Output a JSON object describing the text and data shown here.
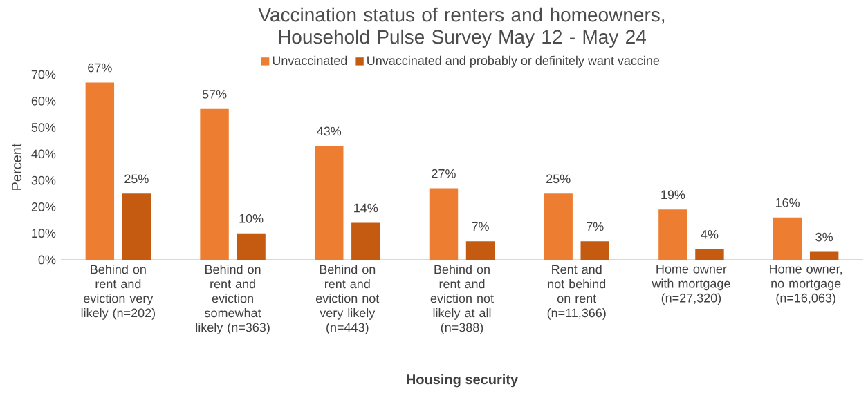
{
  "chart_data": {
    "type": "bar",
    "title": "Vaccination status of renters and homeowners, Household Pulse Survey May 12 - May 24",
    "xlabel": "Housing security",
    "ylabel": "Percent",
    "categories": [
      "Behind on rent and eviction very likely (n=202)",
      "Behind on rent and eviction somewhat likely (n=363)",
      "Behind on rent and eviction not very likely (n=443)",
      "Behind on rent and eviction  not likely at all (n=388)",
      "Rent and not behind on rent (n=11,366)",
      "Home owner with mortgage (n=27,320)",
      "Home owner, no mortgage (n=16,063)"
    ],
    "series": [
      {
        "name": "Unvaccinated",
        "color": "#ed7d31",
        "values": [
          67,
          57,
          43,
          27,
          25,
          19,
          16
        ],
        "value_labels": [
          "67%",
          "57%",
          "43%",
          "27%",
          "25%",
          "19%",
          "16%"
        ]
      },
      {
        "name": "Unvaccinated and probably or definitely want vaccine",
        "color": "#c55a11",
        "values": [
          25,
          10,
          14,
          7,
          7,
          4,
          3
        ],
        "value_labels": [
          "25%",
          "10%",
          "14%",
          "7%",
          "7%",
          "4%",
          "3%"
        ]
      }
    ],
    "ylim": [
      0,
      70
    ],
    "yticks": [
      {
        "value": 0,
        "label": "0%"
      },
      {
        "value": 10,
        "label": "10%"
      },
      {
        "value": 20,
        "label": "20%"
      },
      {
        "value": 30,
        "label": "30%"
      },
      {
        "value": 40,
        "label": "40%"
      },
      {
        "value": 50,
        "label": "50%"
      },
      {
        "value": 60,
        "label": "60%"
      },
      {
        "value": 70,
        "label": "70%"
      }
    ],
    "legend": "top"
  }
}
